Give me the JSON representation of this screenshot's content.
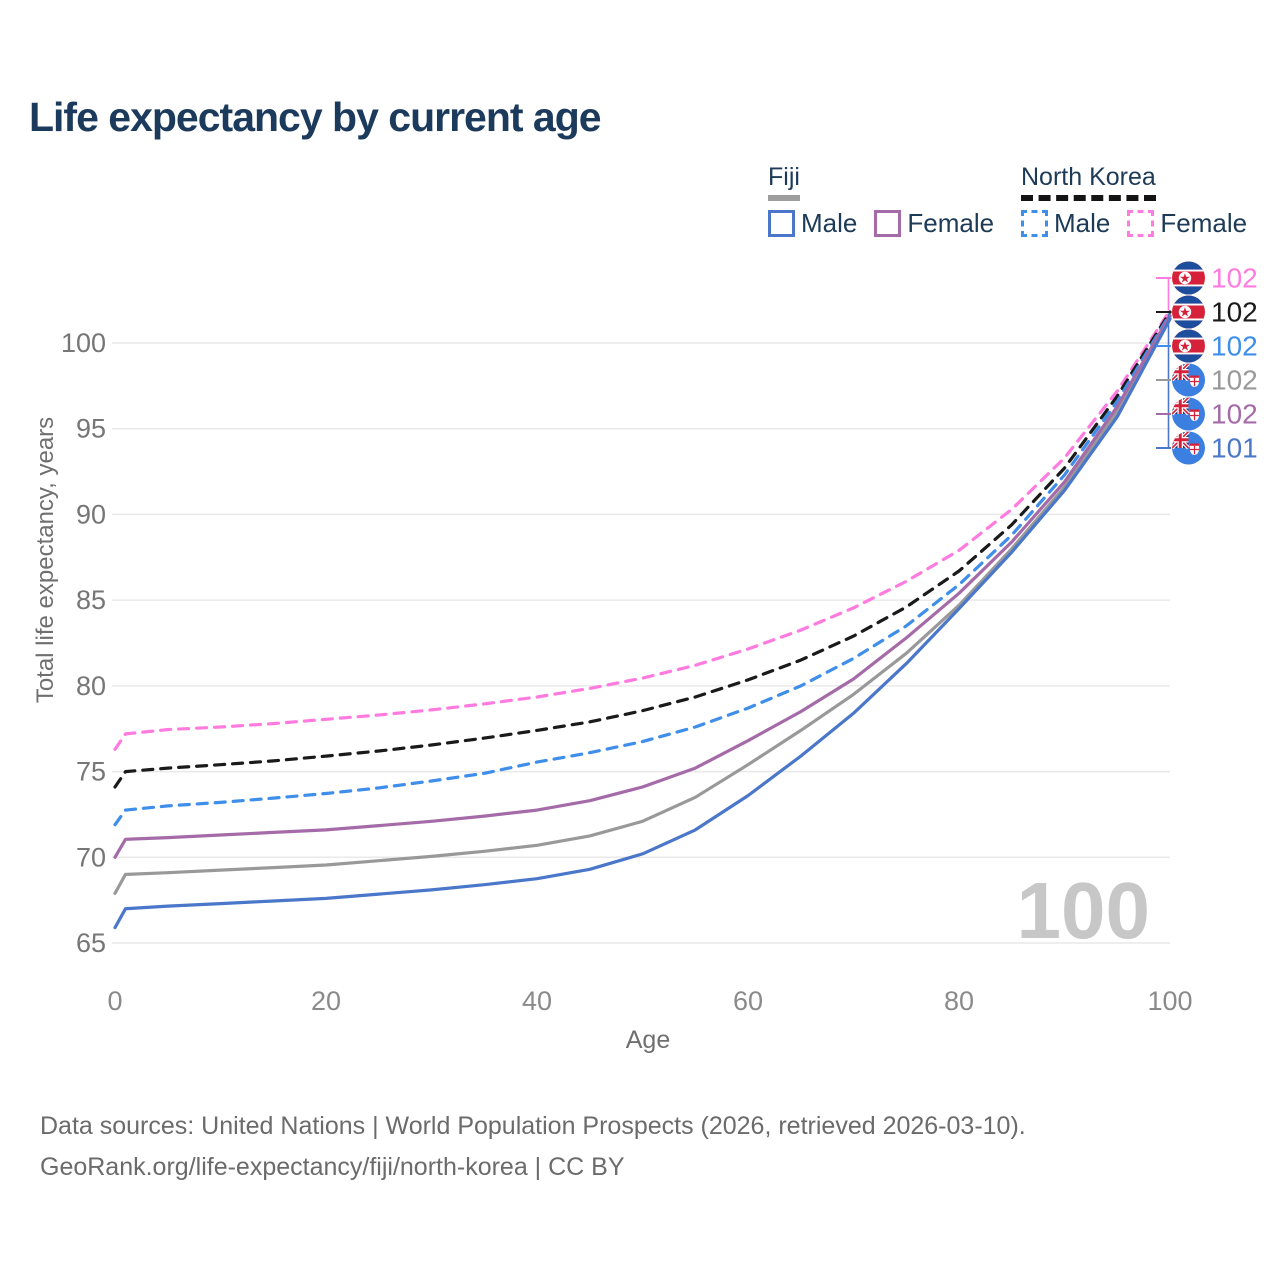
{
  "page": {
    "title": "Life expectancy by current age"
  },
  "legend": {
    "fiji": {
      "label": "Fiji",
      "line_color": "#9e9e9e",
      "male": {
        "label": "Male",
        "color": "#4a77c9"
      },
      "female": {
        "label": "Female",
        "color": "#a56ba8"
      }
    },
    "north_korea": {
      "label": "North Korea",
      "line_color": "#141414",
      "male": {
        "label": "Male",
        "color": "#3e8eea"
      },
      "female": {
        "label": "Female",
        "color": "#ff7bdf"
      }
    }
  },
  "chart_data": {
    "type": "line",
    "title": "Life expectancy by current age",
    "xlabel": "Age",
    "ylabel": "Total life expectancy, years",
    "xlim": [
      0,
      100
    ],
    "ylim": [
      63.8,
      103.5
    ],
    "x_ticks": [
      0,
      20,
      40,
      60,
      80,
      100
    ],
    "y_ticks": [
      65,
      70,
      75,
      80,
      85,
      90,
      95,
      100
    ],
    "grid": "horizontal",
    "legend_position": "top-right",
    "watermark": "100",
    "ages": [
      0,
      1,
      5,
      10,
      15,
      20,
      25,
      30,
      35,
      40,
      45,
      50,
      55,
      60,
      65,
      70,
      75,
      80,
      85,
      90,
      95,
      100
    ],
    "series": [
      {
        "id": "north-korea-female",
        "name": "North Korea Female",
        "color": "#ff7bdf",
        "dash": true,
        "values": [
          76.3,
          77.2,
          77.45,
          77.6,
          77.8,
          78.05,
          78.3,
          78.6,
          78.95,
          79.35,
          79.85,
          80.45,
          81.2,
          82.15,
          83.25,
          84.55,
          86.1,
          87.9,
          90.3,
          93.3,
          97.2,
          101.9
        ],
        "end_label": "102",
        "end_flag": "north-korea"
      },
      {
        "id": "north-korea-all",
        "name": "North Korea",
        "color": "#1a1a1a",
        "dash": true,
        "values": [
          74.1,
          75.0,
          75.2,
          75.4,
          75.62,
          75.9,
          76.2,
          76.55,
          76.95,
          77.4,
          77.9,
          78.55,
          79.35,
          80.35,
          81.5,
          82.9,
          84.6,
          86.7,
          89.4,
          92.7,
          96.9,
          101.8
        ],
        "end_label": "102",
        "end_flag": "north-korea"
      },
      {
        "id": "north-korea-male",
        "name": "North Korea Male",
        "color": "#3e8eea",
        "dash": true,
        "values": [
          71.9,
          72.75,
          73.0,
          73.2,
          73.45,
          73.72,
          74.05,
          74.45,
          74.9,
          75.55,
          76.1,
          76.75,
          77.6,
          78.7,
          80.0,
          81.6,
          83.5,
          85.9,
          88.8,
          92.3,
          96.6,
          101.7
        ],
        "end_label": "102",
        "end_flag": "north-korea"
      },
      {
        "id": "fiji-all",
        "name": "Fiji",
        "color": "#999999",
        "dash": false,
        "values": [
          67.9,
          69.0,
          69.1,
          69.25,
          69.4,
          69.55,
          69.8,
          70.05,
          70.35,
          70.7,
          71.25,
          72.1,
          73.5,
          75.4,
          77.4,
          79.5,
          81.9,
          84.7,
          88.0,
          91.6,
          96.0,
          101.5
        ],
        "end_label": "102",
        "end_flag": "fiji"
      },
      {
        "id": "fiji-female",
        "name": "Fiji Female",
        "color": "#a56ba8",
        "dash": false,
        "values": [
          70.0,
          71.05,
          71.15,
          71.3,
          71.45,
          71.6,
          71.85,
          72.1,
          72.4,
          72.75,
          73.3,
          74.1,
          75.2,
          76.8,
          78.5,
          80.4,
          82.8,
          85.4,
          88.4,
          91.9,
          96.3,
          101.6
        ],
        "end_label": "102",
        "end_flag": "fiji"
      },
      {
        "id": "fiji-male",
        "name": "Fiji Male",
        "color": "#4a77c9",
        "dash": false,
        "values": [
          65.9,
          67.0,
          67.15,
          67.3,
          67.45,
          67.6,
          67.85,
          68.1,
          68.4,
          68.75,
          69.3,
          70.2,
          71.6,
          73.6,
          75.9,
          78.4,
          81.3,
          84.5,
          87.8,
          91.4,
          95.7,
          101.4
        ],
        "end_label": "101",
        "end_flag": "fiji"
      }
    ]
  },
  "footer": {
    "line1": "Data sources: United Nations | World Population Prospects (2026, retrieved 2026-03-10).",
    "line2": "GeoRank.org/life-expectancy/fiji/north-korea | CC BY"
  }
}
